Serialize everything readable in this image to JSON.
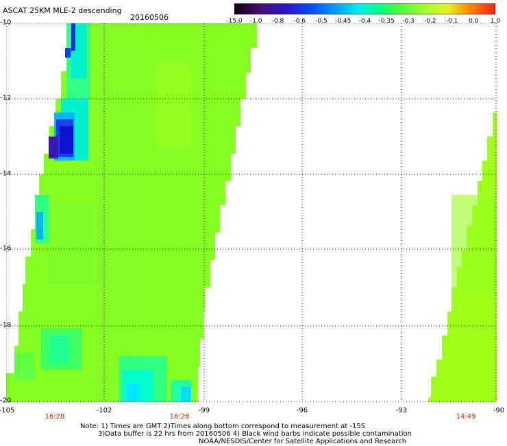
{
  "header": {
    "title": "ASCAT 25KM MLE-2 descending",
    "date": "20160506"
  },
  "colorbar": {
    "labels": [
      "-15.0",
      "-1.0",
      "-0.8",
      "-0.6",
      "-0.5",
      "-0.45",
      "-0.4",
      "-0.35",
      "-0.3",
      "-0.2",
      "-0.1",
      "0.0",
      "1.0"
    ],
    "colors": [
      "#100010",
      "#4a0a78",
      "#1a18c8",
      "#0050ff",
      "#00a8ff",
      "#00f0f0",
      "#00ff88",
      "#40ff40",
      "#98ff30",
      "#d8ff20",
      "#ff8800",
      "#ff3010"
    ]
  },
  "map": {
    "lat_labels": [
      "-10",
      "-12",
      "-14",
      "-16",
      "-18",
      "-20"
    ],
    "lon_labels": [
      "-105",
      "-102",
      "-99",
      "-96",
      "-93",
      "-90"
    ],
    "pass_times": [
      "16:28",
      "16:28",
      "14:49"
    ],
    "background": "#ffffff",
    "swath_color": "#88ff22",
    "grid_style": "dotted black"
  },
  "notes": {
    "line1": "Note: 1) Times are GMT 2)Times along bottom correspond to measurement at -15S",
    "line2": "3)Data buffer is 22 hrs from 20160506 4) Black wind barbs indicate possible contamination",
    "line3": "NOAA/NESDIS/Center for Satellite Applications and Research"
  }
}
